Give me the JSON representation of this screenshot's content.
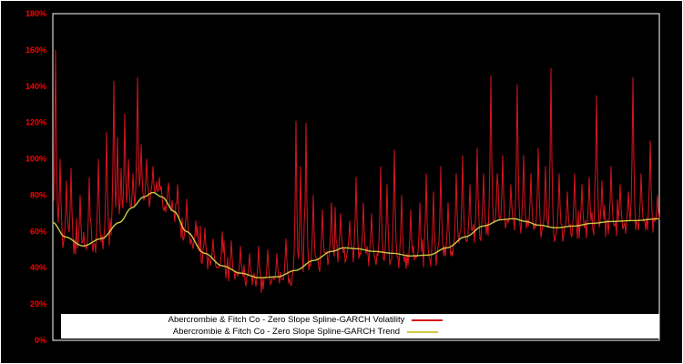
{
  "chart_data": {
    "type": "line",
    "title": "",
    "xlabel": "",
    "ylabel": "",
    "ylim": [
      0,
      180
    ],
    "x_range": [
      0,
      1
    ],
    "grid": false,
    "background": "#000000",
    "plot_border_color": "#ffffff",
    "tick_color": "#ff0000",
    "y_ticks": [
      {
        "value": 0,
        "label": "0%"
      },
      {
        "value": 20,
        "label": "20%"
      },
      {
        "value": 40,
        "label": "40%"
      },
      {
        "value": 60,
        "label": "60%"
      },
      {
        "value": 80,
        "label": "80%"
      },
      {
        "value": 100,
        "label": "100%"
      },
      {
        "value": 120,
        "label": "120%"
      },
      {
        "value": 140,
        "label": "140%"
      },
      {
        "value": 160,
        "label": "160%"
      },
      {
        "value": 180,
        "label": "180%"
      }
    ],
    "legend": {
      "position": "bottom-inside",
      "background": "#ffffff",
      "entries": [
        {
          "label": "Abercrombie & Fitch Co - Zero Slope Spline-GARCH Volatility",
          "color": "#d8141e"
        },
        {
          "label": "Abercrombie & Fitch Co - Zero Slope Spline-GARCH Trend",
          "color": "#cdc944"
        }
      ]
    },
    "series": [
      {
        "name": "Abercrombie & Fitch Co - Zero Slope Spline-GARCH Volatility",
        "color": "#d8141e",
        "type": "spiky-line",
        "seed": 7,
        "base_trend_offset": -3,
        "noise_amplitude": 11,
        "medium_spike_probability": 0.12,
        "medium_spike_max": 25,
        "spikes": [
          [
            0.004,
            160
          ],
          [
            0.012,
            100
          ],
          [
            0.022,
            88
          ],
          [
            0.03,
            95
          ],
          [
            0.045,
            80
          ],
          [
            0.06,
            90
          ],
          [
            0.075,
            100
          ],
          [
            0.088,
            115
          ],
          [
            0.1,
            143
          ],
          [
            0.106,
            112
          ],
          [
            0.112,
            95
          ],
          [
            0.118,
            125
          ],
          [
            0.125,
            100
          ],
          [
            0.132,
            92
          ],
          [
            0.14,
            145
          ],
          [
            0.146,
            108
          ],
          [
            0.155,
            100
          ],
          [
            0.165,
            96
          ],
          [
            0.175,
            90
          ],
          [
            0.19,
            87
          ],
          [
            0.205,
            86
          ],
          [
            0.22,
            78
          ],
          [
            0.235,
            66
          ],
          [
            0.25,
            62
          ],
          [
            0.265,
            56
          ],
          [
            0.28,
            60
          ],
          [
            0.295,
            55
          ],
          [
            0.31,
            52
          ],
          [
            0.325,
            48
          ],
          [
            0.34,
            52
          ],
          [
            0.355,
            50
          ],
          [
            0.37,
            48
          ],
          [
            0.385,
            56
          ],
          [
            0.401,
            121
          ],
          [
            0.408,
            96
          ],
          [
            0.418,
            120
          ],
          [
            0.43,
            80
          ],
          [
            0.445,
            72
          ],
          [
            0.46,
            76
          ],
          [
            0.475,
            70
          ],
          [
            0.49,
            66
          ],
          [
            0.5,
            90
          ],
          [
            0.512,
            76
          ],
          [
            0.525,
            70
          ],
          [
            0.54,
            96
          ],
          [
            0.551,
            86
          ],
          [
            0.563,
            105
          ],
          [
            0.575,
            80
          ],
          [
            0.59,
            72
          ],
          [
            0.605,
            76
          ],
          [
            0.616,
            92
          ],
          [
            0.628,
            82
          ],
          [
            0.64,
            96
          ],
          [
            0.652,
            76
          ],
          [
            0.665,
            92
          ],
          [
            0.676,
            102
          ],
          [
            0.688,
            86
          ],
          [
            0.7,
            106
          ],
          [
            0.71,
            92
          ],
          [
            0.722,
            146
          ],
          [
            0.732,
            92
          ],
          [
            0.742,
            102
          ],
          [
            0.755,
            86
          ],
          [
            0.766,
            141
          ],
          [
            0.776,
            102
          ],
          [
            0.788,
            92
          ],
          [
            0.8,
            106
          ],
          [
            0.812,
            96
          ],
          [
            0.822,
            150
          ],
          [
            0.835,
            92
          ],
          [
            0.848,
            82
          ],
          [
            0.86,
            92
          ],
          [
            0.872,
            86
          ],
          [
            0.885,
            90
          ],
          [
            0.896,
            135
          ],
          [
            0.906,
            88
          ],
          [
            0.92,
            96
          ],
          [
            0.935,
            86
          ],
          [
            0.949,
            82
          ],
          [
            0.957,
            145
          ],
          [
            0.97,
            92
          ],
          [
            0.985,
            110
          ],
          [
            0.997,
            80
          ]
        ]
      },
      {
        "name": "Abercrombie & Fitch Co - Zero Slope Spline-GARCH Trend",
        "color": "#cdc944",
        "type": "smooth-line",
        "points": [
          [
            0.0,
            65
          ],
          [
            0.02,
            57
          ],
          [
            0.05,
            52
          ],
          [
            0.08,
            56
          ],
          [
            0.11,
            65
          ],
          [
            0.13,
            73
          ],
          [
            0.15,
            79
          ],
          [
            0.165,
            81.5
          ],
          [
            0.18,
            79
          ],
          [
            0.2,
            71
          ],
          [
            0.22,
            60
          ],
          [
            0.25,
            48
          ],
          [
            0.28,
            41
          ],
          [
            0.31,
            37
          ],
          [
            0.34,
            34.5
          ],
          [
            0.37,
            35
          ],
          [
            0.4,
            38.5
          ],
          [
            0.43,
            44
          ],
          [
            0.46,
            49
          ],
          [
            0.48,
            51
          ],
          [
            0.5,
            50.5
          ],
          [
            0.53,
            49
          ],
          [
            0.56,
            48
          ],
          [
            0.59,
            46.5
          ],
          [
            0.62,
            47
          ],
          [
            0.65,
            51
          ],
          [
            0.68,
            57
          ],
          [
            0.71,
            63
          ],
          [
            0.74,
            66.5
          ],
          [
            0.76,
            67
          ],
          [
            0.78,
            65.5
          ],
          [
            0.8,
            63.5
          ],
          [
            0.83,
            62
          ],
          [
            0.86,
            63
          ],
          [
            0.89,
            64.5
          ],
          [
            0.92,
            65.5
          ],
          [
            0.96,
            66
          ],
          [
            1.0,
            67
          ]
        ]
      }
    ]
  }
}
